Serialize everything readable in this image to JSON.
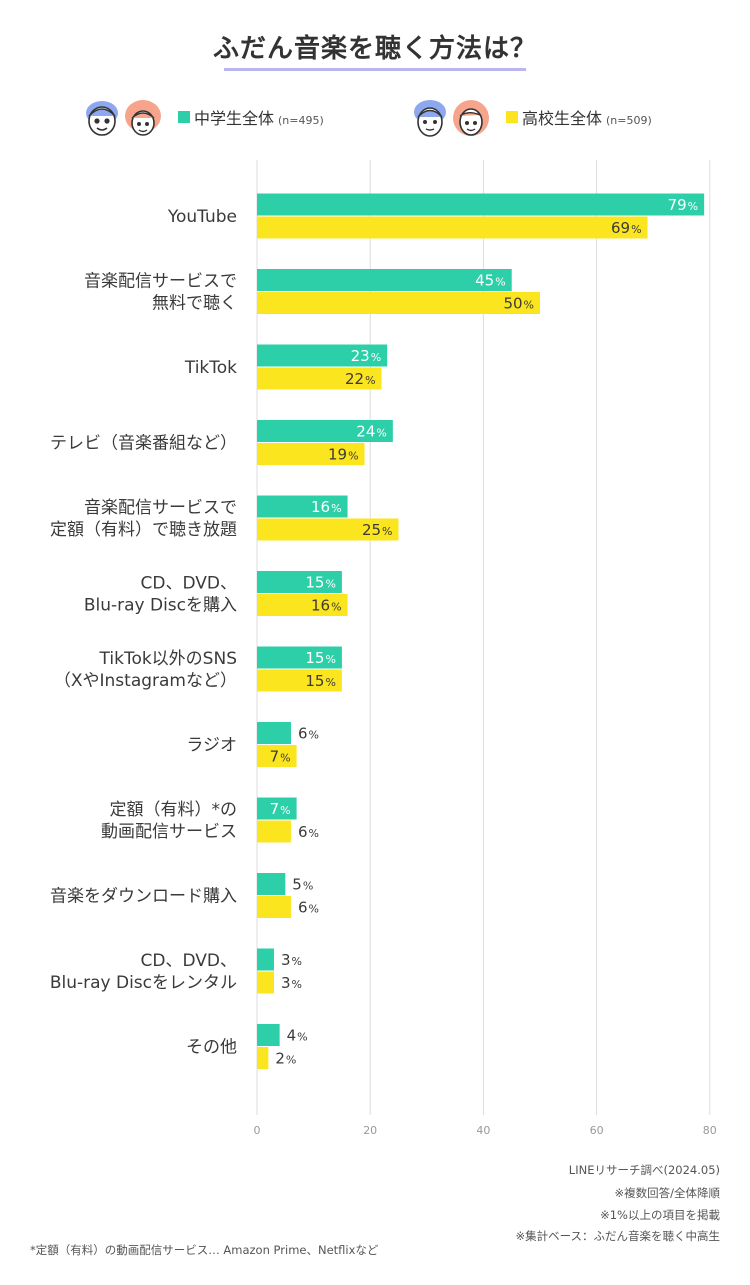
{
  "header": {
    "title": "ふだん音楽を聴く方法は？"
  },
  "legend": {
    "middle": {
      "label": "中学生全体",
      "n": "(n=495)"
    },
    "high": {
      "label": "高校生全体",
      "n": "(n=509)"
    }
  },
  "colors": {
    "middle": "#2ccfa8",
    "high": "#fbe51f",
    "underline": "#b9b6ef",
    "grid": "#dddddd",
    "face_blue": "#8ea8f0",
    "face_pink": "#f6a48c"
  },
  "chart_data": {
    "type": "bar",
    "orientation": "horizontal",
    "categories": [
      [
        "YouTube"
      ],
      [
        "音楽配信サービスで",
        "無料で聴く"
      ],
      [
        "TikTok"
      ],
      [
        "テレビ（音楽番組など）"
      ],
      [
        "音楽配信サービスで",
        "定額（有料）で聴き放題"
      ],
      [
        "CD、DVD、",
        "Blu-ray Discを購入"
      ],
      [
        "TikTok以外のSNS",
        "（XやInstagramなど）"
      ],
      [
        "ラジオ"
      ],
      [
        "定額（有料）*の",
        "動画配信サービス"
      ],
      [
        "音楽をダウンロード購入"
      ],
      [
        "CD、DVD、",
        "Blu-ray Discをレンタル"
      ],
      [
        "その他"
      ]
    ],
    "series": [
      {
        "name": "中学生全体",
        "values": [
          79,
          45,
          23,
          24,
          16,
          15,
          15,
          6,
          7,
          5,
          3,
          4
        ]
      },
      {
        "name": "高校生全体",
        "values": [
          69,
          50,
          22,
          19,
          25,
          16,
          15,
          7,
          6,
          6,
          3,
          2
        ]
      }
    ],
    "unit": "%",
    "xlim": [
      0,
      80
    ],
    "ticks": [
      0,
      20,
      40,
      60,
      80
    ],
    "grid": true
  },
  "notes": {
    "source": "LINEリサーチ調べ(2024.05)",
    "note1": "※複数回答/全体降順",
    "note2": "※1%以上の項目を掲載",
    "note3": "※集計ベース：ふだん音楽を聴く中高生"
  },
  "footnote": "*定額（有料）の動画配信サービス… Amazon Prime、Netflixなど"
}
